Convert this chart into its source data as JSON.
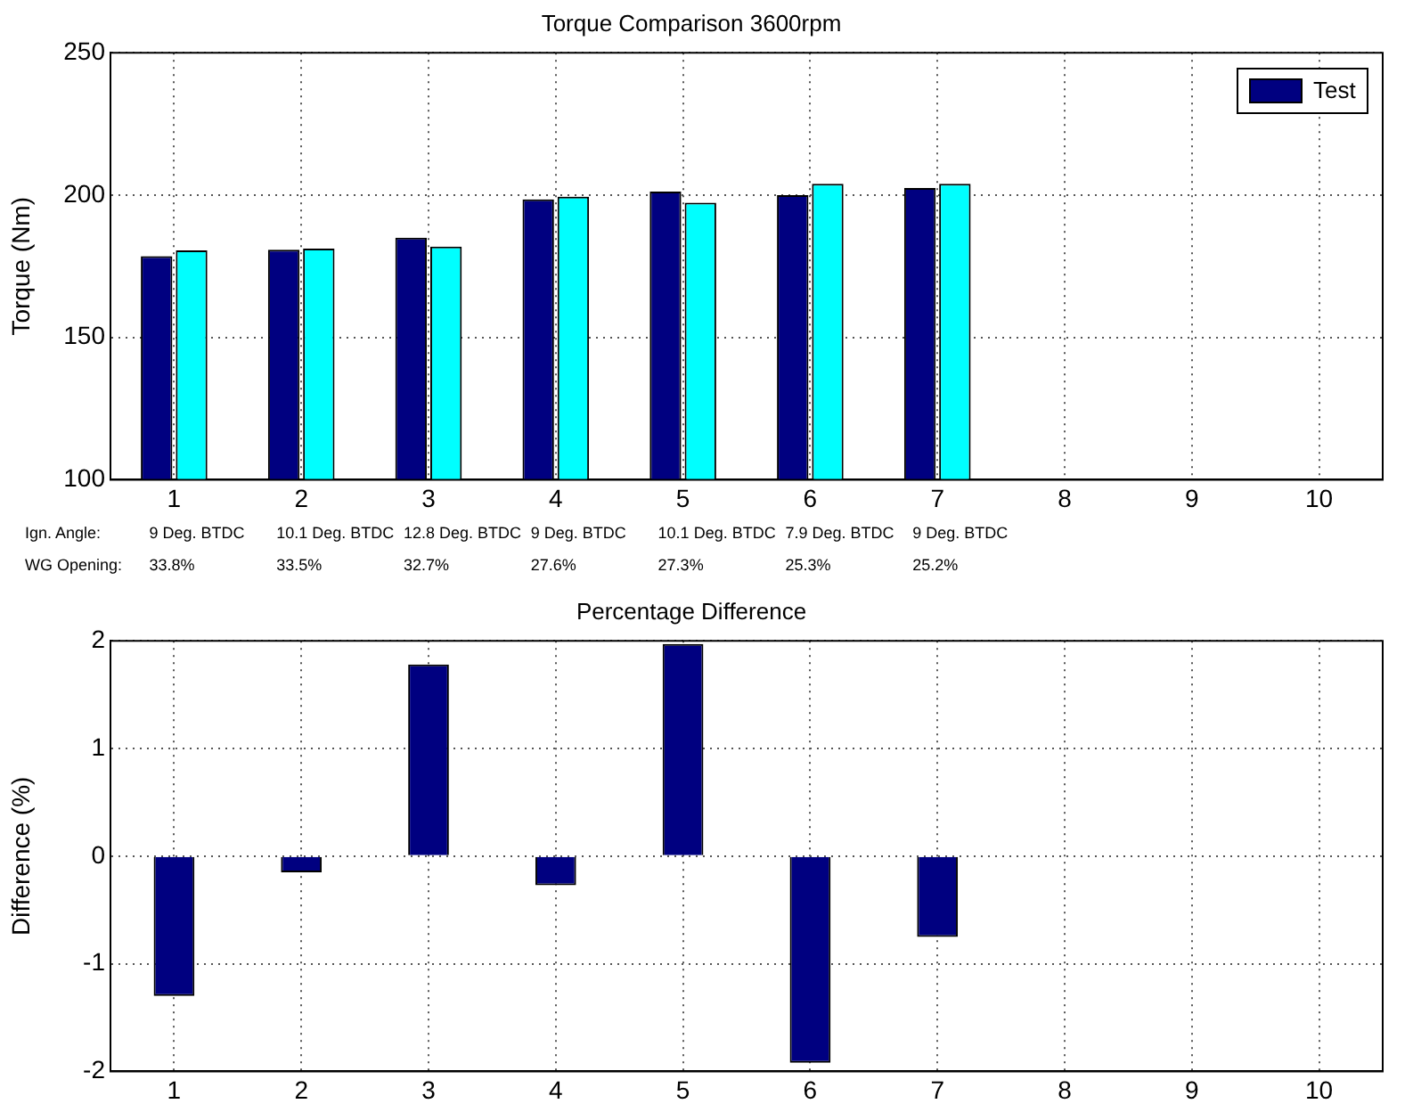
{
  "chart_data": [
    {
      "type": "bar",
      "title": "Torque Comparison 3600rpm",
      "ylabel": "Torque (Nm)",
      "categories": [
        "1",
        "2",
        "3",
        "4",
        "5",
        "6",
        "7",
        "8",
        "9",
        "10"
      ],
      "series": [
        {
          "name": "Test",
          "color": "#000080",
          "values": [
            178.5,
            180.8,
            185,
            198.5,
            201.2,
            200,
            202.5,
            null,
            null,
            null
          ]
        },
        {
          "color": "#00ffff",
          "values": [
            180.6,
            181.2,
            181.9,
            199.4,
            197.3,
            204,
            204,
            null,
            null,
            null
          ]
        }
      ],
      "ylim": [
        100,
        250
      ],
      "yticks": [
        100,
        150,
        200,
        250
      ],
      "grid": true,
      "legend": "top right",
      "annotations": [
        "Ign. Angle:",
        "9 Deg. BTDC",
        "10.1 Deg. BTDC",
        "12.8 Deg. BTDC",
        "9 Deg. BTDC",
        "10.1 Deg. BTDC",
        "7.9 Deg. BTDC",
        "9 Deg. BTDC",
        "WG Opening:",
        "33.8%",
        "33.5%",
        "32.7%",
        "27.6%",
        "27.3%",
        "25.3%",
        "25.2%"
      ]
    },
    {
      "type": "bar",
      "title": "Percentage Difference",
      "ylabel": "Difference (%)",
      "categories": [
        "1",
        "2",
        "3",
        "4",
        "5",
        "6",
        "7",
        "8",
        "9",
        "10"
      ],
      "values": [
        -1.3,
        -0.15,
        1.78,
        -0.27,
        1.97,
        -1.92,
        -0.75,
        0,
        0,
        0
      ],
      "color": "#000080",
      "ylim": [
        -2,
        2
      ],
      "yticks": [
        -2,
        -1,
        0,
        1,
        2
      ],
      "grid": true
    }
  ]
}
